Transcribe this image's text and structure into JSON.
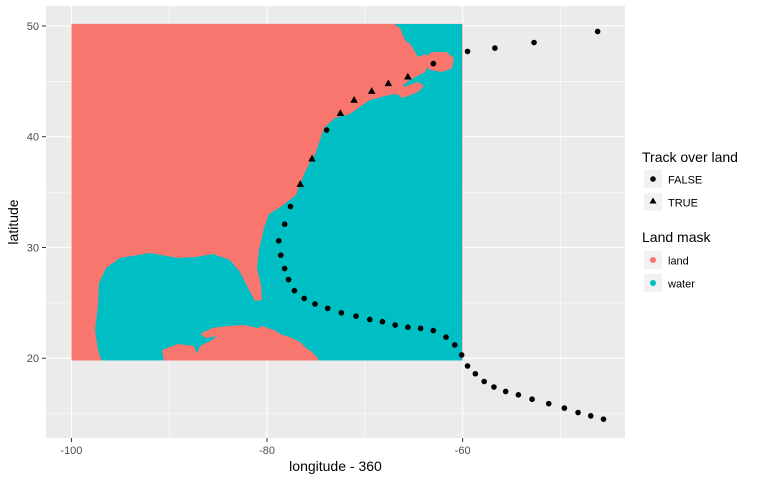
{
  "chart_data": {
    "type": "scatter",
    "xlabel": "longitude - 360",
    "ylabel": "latitude",
    "xlim": [
      -102.6,
      -43.4
    ],
    "ylim": [
      12.8,
      51.8
    ],
    "xticks": [
      -100,
      -80,
      -60
    ],
    "yticks": [
      20,
      30,
      40,
      50
    ],
    "grid": true,
    "legend_position": "right",
    "colors": {
      "land": "#F8766D",
      "water": "#00BFC4",
      "panel": "#EBEBEB",
      "grid": "#FFFFFF"
    },
    "raster_extent": {
      "x": [
        -100,
        -60
      ],
      "y": [
        19.8,
        50.2
      ]
    },
    "land_mask": {
      "title": "Land mask",
      "entries": [
        {
          "label": "land",
          "color": "#F8766D"
        },
        {
          "label": "water",
          "color": "#00BFC4"
        }
      ]
    },
    "track_over_land": {
      "title": "Track over land",
      "entries": [
        {
          "label": "FALSE",
          "shape": "circle"
        },
        {
          "label": "TRUE",
          "shape": "triangle"
        }
      ]
    },
    "track": [
      {
        "x": -46.2,
        "y": 49.5,
        "over_land": false
      },
      {
        "x": -52.7,
        "y": 48.5,
        "over_land": false
      },
      {
        "x": -56.7,
        "y": 48.0,
        "over_land": false
      },
      {
        "x": -59.5,
        "y": 47.7,
        "over_land": false
      },
      {
        "x": -63.0,
        "y": 46.6,
        "over_land": false
      },
      {
        "x": -65.6,
        "y": 45.4,
        "over_land": true
      },
      {
        "x": -67.6,
        "y": 44.8,
        "over_land": true
      },
      {
        "x": -69.3,
        "y": 44.1,
        "over_land": true
      },
      {
        "x": -71.1,
        "y": 43.3,
        "over_land": true
      },
      {
        "x": -72.5,
        "y": 42.1,
        "over_land": true
      },
      {
        "x": -73.9,
        "y": 40.6,
        "over_land": false
      },
      {
        "x": -75.4,
        "y": 38.0,
        "over_land": true
      },
      {
        "x": -76.6,
        "y": 35.7,
        "over_land": true
      },
      {
        "x": -77.6,
        "y": 33.7,
        "over_land": false
      },
      {
        "x": -78.2,
        "y": 32.1,
        "over_land": false
      },
      {
        "x": -78.8,
        "y": 30.6,
        "over_land": false
      },
      {
        "x": -78.6,
        "y": 29.3,
        "over_land": false
      },
      {
        "x": -78.2,
        "y": 28.1,
        "over_land": false
      },
      {
        "x": -77.8,
        "y": 27.1,
        "over_land": false
      },
      {
        "x": -77.2,
        "y": 26.1,
        "over_land": false
      },
      {
        "x": -76.2,
        "y": 25.4,
        "over_land": false
      },
      {
        "x": -75.1,
        "y": 24.9,
        "over_land": false
      },
      {
        "x": -73.8,
        "y": 24.5,
        "over_land": false
      },
      {
        "x": -72.4,
        "y": 24.1,
        "over_land": false
      },
      {
        "x": -70.9,
        "y": 23.8,
        "over_land": false
      },
      {
        "x": -69.5,
        "y": 23.5,
        "over_land": false
      },
      {
        "x": -68.2,
        "y": 23.3,
        "over_land": false
      },
      {
        "x": -66.9,
        "y": 23.0,
        "over_land": false
      },
      {
        "x": -65.6,
        "y": 22.8,
        "over_land": false
      },
      {
        "x": -64.3,
        "y": 22.7,
        "over_land": false
      },
      {
        "x": -63.0,
        "y": 22.5,
        "over_land": false
      },
      {
        "x": -61.7,
        "y": 21.9,
        "over_land": false
      },
      {
        "x": -60.8,
        "y": 21.2,
        "over_land": false
      },
      {
        "x": -60.1,
        "y": 20.3,
        "over_land": false
      },
      {
        "x": -59.5,
        "y": 19.3,
        "over_land": false
      },
      {
        "x": -58.7,
        "y": 18.6,
        "over_land": false
      },
      {
        "x": -57.8,
        "y": 17.9,
        "over_land": false
      },
      {
        "x": -56.8,
        "y": 17.4,
        "over_land": false
      },
      {
        "x": -55.6,
        "y": 17.0,
        "over_land": false
      },
      {
        "x": -54.3,
        "y": 16.7,
        "over_land": false
      },
      {
        "x": -52.9,
        "y": 16.3,
        "over_land": false
      },
      {
        "x": -51.2,
        "y": 15.9,
        "over_land": false
      },
      {
        "x": -49.6,
        "y": 15.5,
        "over_land": false
      },
      {
        "x": -48.2,
        "y": 15.1,
        "over_land": false
      },
      {
        "x": -46.9,
        "y": 14.8,
        "over_land": false
      },
      {
        "x": -45.6,
        "y": 14.5,
        "over_land": false
      }
    ]
  }
}
